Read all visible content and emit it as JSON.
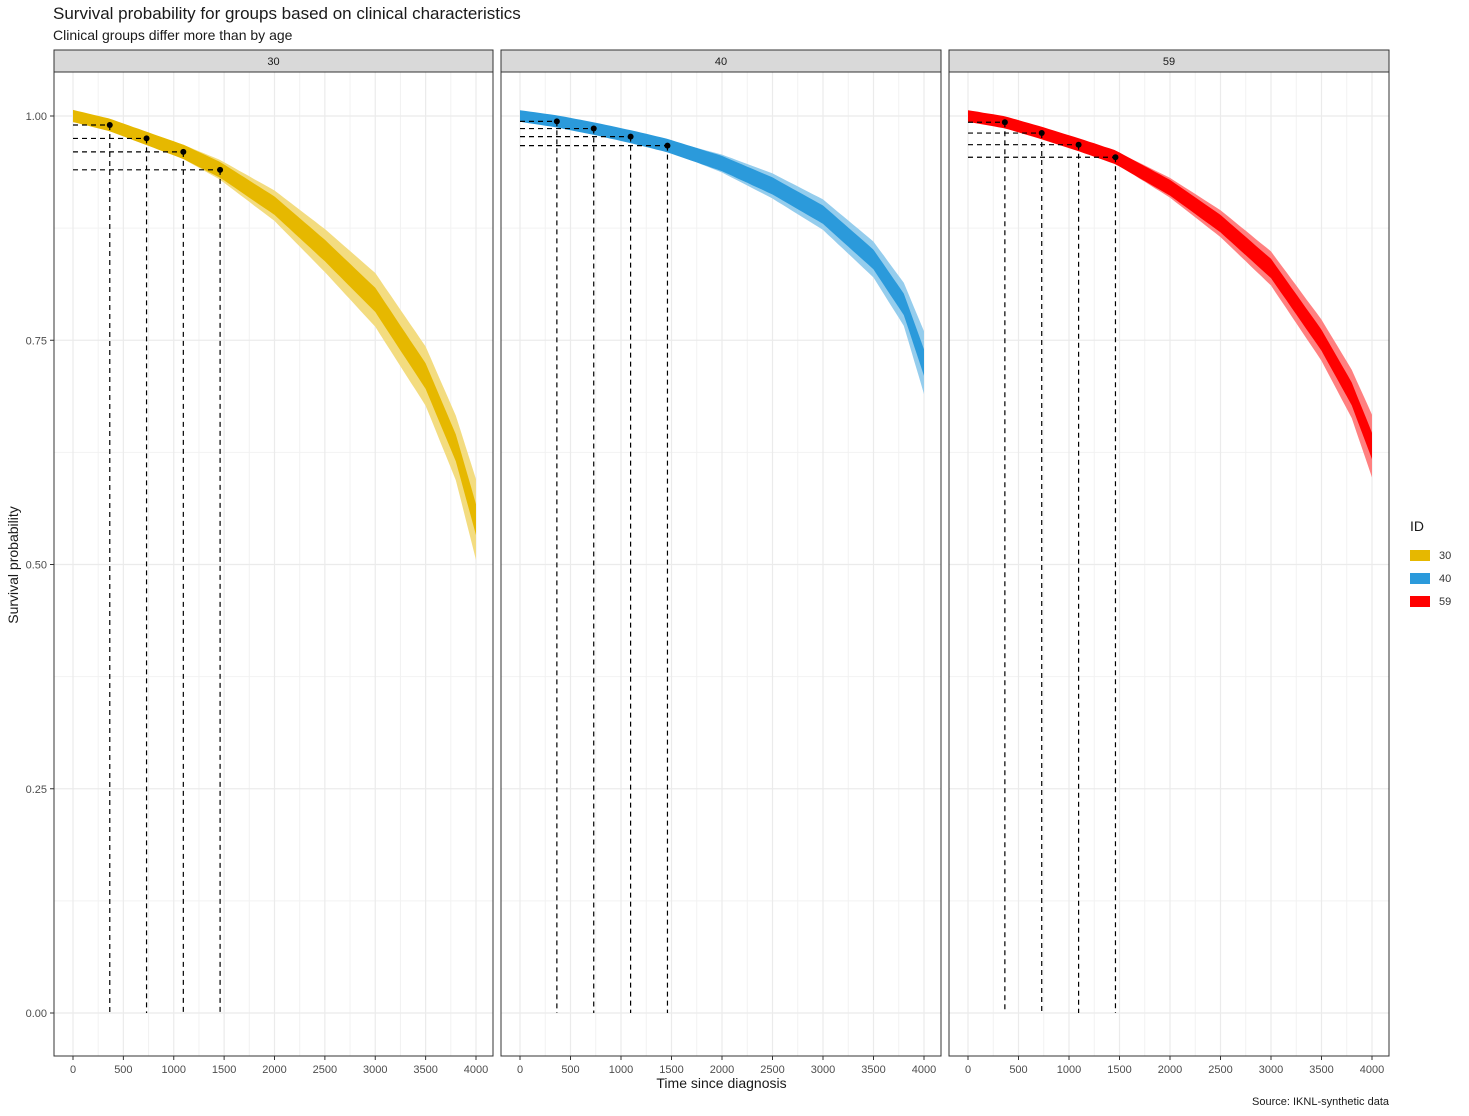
{
  "title": "Survival probability for groups based on clinical characteristics",
  "subtitle": "Clinical groups differ more than by age",
  "caption": "Source: IKNL-synthetic data",
  "xlabel": "Time since diagnosis",
  "ylabel": "Survival probability",
  "legend": {
    "title": "ID",
    "items": [
      {
        "label": "30",
        "color": "#E6B800"
      },
      {
        "label": "40",
        "color": "#2B9ADB"
      },
      {
        "label": "59",
        "color": "#FF0000"
      }
    ]
  },
  "chart_data": {
    "type": "area",
    "facets": [
      "30",
      "40",
      "59"
    ],
    "xlim": [
      0,
      4000
    ],
    "ylim": [
      0,
      1
    ],
    "x_ticks": [
      0,
      500,
      1000,
      1500,
      2000,
      2500,
      3000,
      3500,
      4000
    ],
    "x_tick_labels": [
      "0",
      "500",
      "1000",
      "1500",
      "2000",
      "2500",
      "3000",
      "3500",
      "4000"
    ],
    "y_ticks": [
      0,
      0.25,
      0.5,
      0.75,
      1
    ],
    "y_tick_labels": [
      "0.00",
      "0.25",
      "0.50",
      "0.75",
      "1.00"
    ],
    "grid": true,
    "legend_position": "right",
    "marked_times": [
      365,
      730,
      1095,
      1460
    ],
    "series": [
      {
        "name": "30",
        "color": "#E6B800",
        "x": [
          0,
          365,
          730,
          1095,
          1460,
          2000,
          2500,
          3000,
          3500,
          3800,
          4000
        ],
        "y": [
          1.0,
          0.99,
          0.975,
          0.96,
          0.94,
          0.9,
          0.85,
          0.795,
          0.71,
          0.63,
          0.55
        ],
        "ci_halfwidth": [
          0.003,
          0.004,
          0.006,
          0.008,
          0.011,
          0.017,
          0.024,
          0.03,
          0.033,
          0.036,
          0.045
        ],
        "marked_survival": [
          0.99,
          0.975,
          0.96,
          0.94
        ]
      },
      {
        "name": "40",
        "color": "#2B9ADB",
        "x": [
          0,
          365,
          730,
          1095,
          1460,
          2000,
          2500,
          3000,
          3500,
          3800,
          4000
        ],
        "y": [
          1.0,
          0.994,
          0.986,
          0.977,
          0.967,
          0.947,
          0.922,
          0.89,
          0.84,
          0.79,
          0.725
        ],
        "ci_halfwidth": [
          0.002,
          0.003,
          0.004,
          0.005,
          0.006,
          0.01,
          0.014,
          0.017,
          0.02,
          0.024,
          0.035
        ],
        "marked_survival": [
          0.994,
          0.986,
          0.977,
          0.967
        ]
      },
      {
        "name": "59",
        "color": "#FF0000",
        "x": [
          0,
          365,
          730,
          1095,
          1460,
          2000,
          2500,
          3000,
          3500,
          3800,
          4000
        ],
        "y": [
          1.0,
          0.993,
          0.981,
          0.968,
          0.954,
          0.92,
          0.88,
          0.83,
          0.75,
          0.69,
          0.632
        ],
        "ci_halfwidth": [
          0.002,
          0.003,
          0.004,
          0.005,
          0.007,
          0.011,
          0.015,
          0.019,
          0.023,
          0.027,
          0.035
        ],
        "marked_survival": [
          0.993,
          0.981,
          0.968,
          0.954
        ]
      }
    ]
  }
}
